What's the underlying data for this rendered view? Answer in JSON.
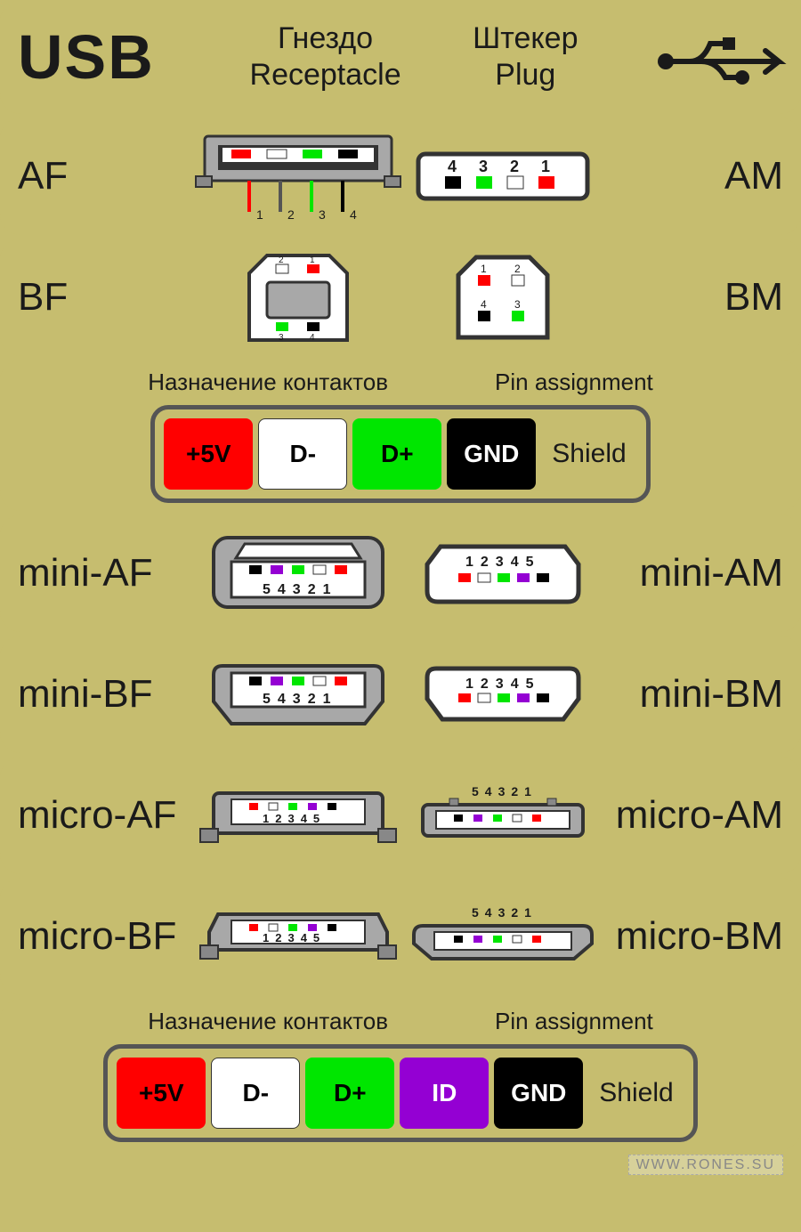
{
  "colors": {
    "bg": "#c6bd6f",
    "text": "#1a1a1a",
    "border": "#555555",
    "metal": "#a8a8a8",
    "metal_dark": "#888888",
    "white": "#ffffff",
    "shell": "#e8e8e8",
    "red": "#ff0000",
    "green": "#00e600",
    "black": "#000000",
    "purple": "#9400d3"
  },
  "header": {
    "title": "USB",
    "col1_ru": "Гнездо",
    "col1_en": "Receptacle",
    "col2_ru": "Штекер",
    "col2_en": "Plug"
  },
  "connectors": [
    {
      "left": "AF",
      "right": "AM",
      "type": "A"
    },
    {
      "left": "BF",
      "right": "BM",
      "type": "B"
    }
  ],
  "legend1": {
    "title_ru": "Назначение контактов",
    "title_en": "Pin assignment",
    "shield": "Shield",
    "pins": [
      {
        "label": "+5V",
        "bg": "#ff0000",
        "fg": "#000000"
      },
      {
        "label": "D-",
        "bg": "#ffffff",
        "fg": "#000000"
      },
      {
        "label": "D+",
        "bg": "#00e600",
        "fg": "#000000"
      },
      {
        "label": "GND",
        "bg": "#000000",
        "fg": "#ffffff"
      }
    ]
  },
  "connectors2": [
    {
      "left": "mini-AF",
      "right": "mini-AM",
      "type": "miniA"
    },
    {
      "left": "mini-BF",
      "right": "mini-BM",
      "type": "miniB"
    },
    {
      "left": "micro-AF",
      "right": "micro-AM",
      "type": "microA"
    },
    {
      "left": "micro-BF",
      "right": "micro-BM",
      "type": "microB"
    }
  ],
  "legend2": {
    "title_ru": "Назначение контактов",
    "title_en": "Pin assignment",
    "shield": "Shield",
    "pins": [
      {
        "label": "+5V",
        "bg": "#ff0000",
        "fg": "#000000"
      },
      {
        "label": "D-",
        "bg": "#ffffff",
        "fg": "#000000"
      },
      {
        "label": "D+",
        "bg": "#00e600",
        "fg": "#000000"
      },
      {
        "label": "ID",
        "bg": "#9400d3",
        "fg": "#ffffff"
      },
      {
        "label": "GND",
        "bg": "#000000",
        "fg": "#ffffff"
      }
    ]
  },
  "mini_pins_f": "54321",
  "mini_pins_m": "12345",
  "micro_pins_f": "12345",
  "micro_pins_m": "54321",
  "pin_colors_std": [
    "#ff0000",
    "#ffffff",
    "#00e600",
    "#000000"
  ],
  "pin_colors_mini": [
    "#000000",
    "#9400d3",
    "#00e600",
    "#ffffff",
    "#ff0000"
  ],
  "pin_colors_mini_m": [
    "#ff0000",
    "#ffffff",
    "#00e600",
    "#9400d3",
    "#000000"
  ],
  "footer": "WWW.RONES.SU"
}
